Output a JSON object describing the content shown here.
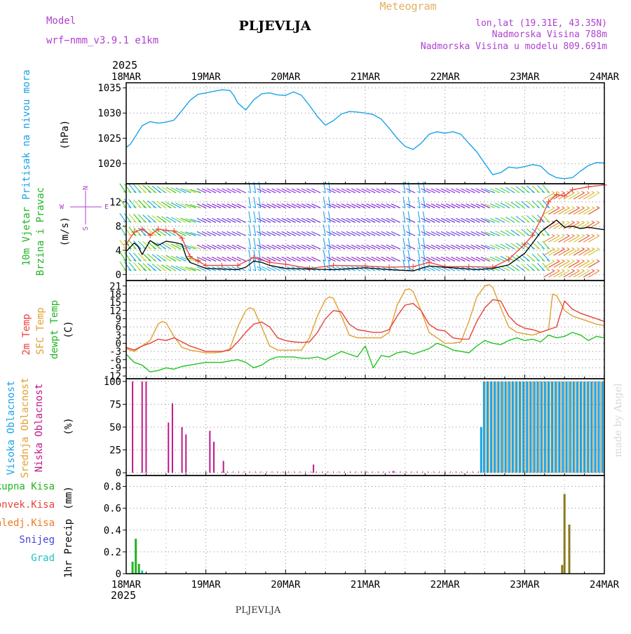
{
  "header": {
    "model_label": "Model",
    "model_name": "wrf−nmm_v3.9.1 e1km",
    "station": "PLJEVLJA",
    "title": "Meteogram",
    "coords": "lon,lat (19.31E, 43.35N)",
    "altitude": "Nadmorska Visina 788m",
    "model_altitude": "Nadmorska Visina u modelu 809.691m",
    "year_top": "2025",
    "year_bottom": "2025",
    "footer_station": "PLJEVLJA",
    "credit": "made by Angel"
  },
  "colors": {
    "pressure": "#1aa3e8",
    "temp2m": "#e8413a",
    "sfc": "#e0a030",
    "dewpt": "#22c422",
    "high_cloud": "#1aa3e8",
    "mid_cloud": "#e0a030",
    "low_cloud": "#c0178a",
    "total_rain": "#22b422",
    "conv_rain": "#e8413a",
    "frz_rain": "#f07820",
    "snow": "#4444dd",
    "hail": "#22c0c0",
    "title": "#e0b060",
    "info": "#b040d0"
  },
  "chart_data": [
    {
      "type": "line",
      "title": "",
      "ylabel": "Pritisak na nivou mora",
      "unit": "(hPa)",
      "x_ticks": [
        "18MAR",
        "19MAR",
        "20MAR",
        "21MAR",
        "22MAR",
        "23MAR",
        "24MAR"
      ],
      "ylim": [
        1016,
        1036
      ],
      "yticks": [
        1020,
        1025,
        1030,
        1035
      ],
      "grid": true,
      "series": [
        {
          "name": "",
          "x": [
            0,
            0.05,
            0.1,
            0.2,
            0.3,
            0.4,
            0.5,
            0.6,
            0.7,
            0.8,
            0.9,
            1.0,
            1.1,
            1.2,
            1.3,
            1.35,
            1.4,
            1.5,
            1.6,
            1.7,
            1.8,
            1.9,
            2.0,
            2.1,
            2.2,
            2.3,
            2.4,
            2.5,
            2.6,
            2.7,
            2.8,
            2.9,
            3.0,
            3.1,
            3.2,
            3.3,
            3.4,
            3.5,
            3.6,
            3.7,
            3.8,
            3.9,
            4.0,
            4.1,
            4.2,
            4.3,
            4.4,
            4.5,
            4.6,
            4.7,
            4.8,
            4.9,
            5.0,
            5.1,
            5.2,
            5.3,
            5.4,
            5.5,
            5.6,
            5.7,
            5.8,
            5.9,
            6.0
          ],
          "y": [
            1023.2,
            1023.8,
            1025.0,
            1027.5,
            1028.3,
            1028.0,
            1028.2,
            1028.6,
            1030.5,
            1032.5,
            1033.7,
            1034.0,
            1034.3,
            1034.6,
            1034.5,
            1033.5,
            1032.0,
            1030.6,
            1032.6,
            1033.8,
            1034.0,
            1033.6,
            1033.5,
            1034.2,
            1033.5,
            1031.5,
            1029.3,
            1027.6,
            1028.5,
            1029.8,
            1030.3,
            1030.2,
            1030.0,
            1029.7,
            1028.8,
            1027.0,
            1025.0,
            1023.4,
            1022.8,
            1024.0,
            1025.8,
            1026.3,
            1026.0,
            1026.3,
            1025.8,
            1024.0,
            1022.3,
            1020.0,
            1017.8,
            1018.2,
            1019.3,
            1019.1,
            1019.4,
            1019.8,
            1019.5,
            1018.0,
            1017.2,
            1017.0,
            1017.2,
            1018.5,
            1019.6,
            1020.2,
            1020.1
          ]
        }
      ]
    },
    {
      "type": "line",
      "title": "",
      "ylabel": "10m Vjetar Brzina i Pravac",
      "unit": "(m/s)",
      "x_ticks": [
        "18MAR",
        "19MAR",
        "20MAR",
        "21MAR",
        "22MAR",
        "23MAR",
        "24MAR"
      ],
      "ylim": [
        -1,
        15
      ],
      "yticks": [
        0,
        4,
        8,
        12
      ],
      "grid": true,
      "compass": {
        "n": "N",
        "w": "W",
        "e": "E",
        "s": "S"
      },
      "series": [
        {
          "name": "",
          "kind": "speed",
          "x": [
            0,
            0.1,
            0.15,
            0.2,
            0.3,
            0.4,
            0.5,
            0.6,
            0.7,
            0.75,
            0.8,
            0.9,
            1.0,
            1.2,
            1.4,
            1.5,
            1.6,
            1.7,
            1.8,
            2.0,
            2.3,
            2.6,
            3.0,
            3.3,
            3.6,
            3.8,
            4.0,
            4.2,
            4.4,
            4.6,
            4.8,
            5.0,
            5.1,
            5.2,
            5.4,
            5.5,
            5.6,
            5.7,
            5.8,
            6.0
          ],
          "y": [
            3.8,
            5.2,
            4.6,
            3.3,
            5.6,
            4.8,
            5.5,
            5.3,
            5.0,
            3.0,
            2.0,
            1.5,
            1.0,
            0.9,
            0.8,
            1.2,
            2.2,
            2.0,
            1.5,
            1.0,
            0.9,
            0.8,
            1.1,
            0.8,
            0.6,
            1.4,
            1.2,
            1.0,
            0.8,
            1.0,
            1.6,
            3.5,
            5.2,
            7.0,
            9.0,
            7.8,
            8.0,
            7.6,
            7.8,
            7.4
          ]
        },
        {
          "name": "",
          "kind": "gust",
          "x": [
            0,
            0.1,
            0.2,
            0.3,
            0.4,
            0.5,
            0.6,
            0.7,
            0.8,
            0.9,
            1.0,
            1.2,
            1.4,
            1.6,
            1.8,
            2.0,
            2.3,
            2.6,
            3.0,
            3.3,
            3.6,
            3.8,
            4.0,
            4.3,
            4.6,
            4.8,
            5.0,
            5.1,
            5.2,
            5.3,
            5.4,
            5.5,
            5.6,
            5.8,
            6.0
          ],
          "y": [
            5.0,
            7.0,
            7.5,
            6.5,
            7.5,
            7.3,
            7.2,
            6.0,
            3.0,
            2.2,
            1.5,
            1.5,
            1.5,
            2.8,
            2.0,
            1.7,
            1.0,
            1.5,
            1.4,
            1.2,
            1.3,
            2.0,
            1.3,
            1.3,
            1.2,
            2.5,
            5.0,
            6.5,
            9.0,
            12.0,
            13.2,
            13.0,
            14.0,
            14.5,
            14.8
          ]
        }
      ]
    },
    {
      "type": "line",
      "title": "",
      "ylabel": "2m Temp / SFC Temp / dewpt Temp",
      "unit": "(C)",
      "x_ticks": [
        "18MAR",
        "19MAR",
        "20MAR",
        "21MAR",
        "22MAR",
        "23MAR",
        "24MAR"
      ],
      "ylim": [
        -13,
        23
      ],
      "yticks": [
        -12,
        -9,
        -6,
        -3,
        0,
        3,
        6,
        9,
        12,
        15,
        18,
        21
      ],
      "grid": true,
      "series": [
        {
          "name": "2m Temp",
          "x": [
            0,
            0.1,
            0.2,
            0.3,
            0.4,
            0.5,
            0.6,
            0.7,
            0.8,
            0.9,
            1.0,
            1.1,
            1.2,
            1.3,
            1.4,
            1.5,
            1.6,
            1.7,
            1.8,
            1.9,
            2.0,
            2.1,
            2.2,
            2.3,
            2.4,
            2.5,
            2.6,
            2.7,
            2.8,
            2.9,
            3.0,
            3.1,
            3.2,
            3.3,
            3.4,
            3.5,
            3.6,
            3.7,
            3.8,
            3.9,
            4.0,
            4.1,
            4.2,
            4.3,
            4.4,
            4.5,
            4.6,
            4.7,
            4.8,
            4.9,
            5.0,
            5.1,
            5.2,
            5.3,
            5.4,
            5.5,
            5.6,
            5.7,
            5.8,
            5.9,
            6.0
          ],
          "y": [
            -1.5,
            -2.5,
            -1.0,
            0.0,
            1.5,
            1.0,
            2.0,
            0.5,
            -1.0,
            -2.0,
            -3.0,
            -3.0,
            -3.0,
            -2.5,
            0.5,
            4.0,
            7.0,
            7.8,
            6.0,
            2.0,
            1.0,
            0.5,
            0.3,
            0.5,
            4.0,
            9.0,
            12.0,
            11.5,
            7.0,
            5.0,
            4.5,
            4.0,
            4.0,
            5.0,
            10.0,
            14.0,
            14.6,
            12.0,
            7.0,
            5.0,
            4.5,
            2.0,
            1.5,
            1.5,
            8.0,
            13.0,
            16.0,
            15.5,
            10.0,
            7.0,
            5.5,
            5.0,
            4.0,
            5.0,
            6.0,
            15.5,
            12.5,
            11.0,
            10.0,
            9.0,
            8.0
          ]
        },
        {
          "name": "SFC Temp",
          "x": [
            0,
            0.1,
            0.2,
            0.3,
            0.4,
            0.45,
            0.5,
            0.55,
            0.6,
            0.7,
            0.8,
            0.9,
            1.0,
            1.1,
            1.2,
            1.3,
            1.4,
            1.5,
            1.55,
            1.6,
            1.7,
            1.8,
            1.9,
            2.0,
            2.1,
            2.2,
            2.3,
            2.4,
            2.5,
            2.55,
            2.6,
            2.7,
            2.8,
            2.9,
            3.0,
            3.1,
            3.2,
            3.3,
            3.4,
            3.5,
            3.55,
            3.6,
            3.7,
            3.8,
            3.9,
            4.0,
            4.1,
            4.2,
            4.3,
            4.4,
            4.5,
            4.55,
            4.6,
            4.7,
            4.8,
            4.9,
            5.0,
            5.1,
            5.2,
            5.3,
            5.35,
            5.4,
            5.5,
            5.6,
            5.7,
            5.8,
            5.9,
            6.0
          ],
          "y": [
            -2.0,
            -3.0,
            -1.0,
            1.0,
            7.0,
            8.0,
            7.5,
            5.0,
            2.5,
            -1.5,
            -2.5,
            -3.0,
            -3.5,
            -3.5,
            -3.2,
            -2.0,
            6.0,
            12.0,
            13.0,
            12.5,
            6.0,
            -1.0,
            -2.5,
            -2.5,
            -2.5,
            -2.5,
            2.0,
            10.0,
            16.0,
            17.0,
            16.5,
            10.0,
            3.0,
            2.0,
            2.0,
            2.0,
            2.0,
            4.0,
            14.0,
            19.5,
            20.0,
            19.0,
            12.0,
            4.0,
            2.0,
            0.0,
            0.0,
            0.5,
            8.0,
            17.0,
            21.0,
            21.5,
            20.5,
            13.0,
            6.0,
            4.0,
            3.5,
            3.0,
            4.0,
            5.0,
            18.0,
            17.5,
            12.0,
            10.0,
            9.0,
            8.0,
            7.0,
            6.5
          ]
        },
        {
          "name": "dewpt Temp",
          "x": [
            0,
            0.1,
            0.2,
            0.3,
            0.4,
            0.5,
            0.6,
            0.7,
            0.8,
            0.9,
            1.0,
            1.1,
            1.2,
            1.3,
            1.4,
            1.5,
            1.6,
            1.7,
            1.8,
            1.9,
            2.0,
            2.1,
            2.2,
            2.3,
            2.4,
            2.5,
            2.6,
            2.7,
            2.8,
            2.9,
            3.0,
            3.1,
            3.2,
            3.3,
            3.4,
            3.5,
            3.6,
            3.7,
            3.8,
            3.9,
            4.0,
            4.1,
            4.2,
            4.3,
            4.4,
            4.5,
            4.6,
            4.7,
            4.8,
            4.9,
            5.0,
            5.1,
            5.2,
            5.3,
            5.4,
            5.5,
            5.6,
            5.7,
            5.8,
            5.9,
            6.0
          ],
          "y": [
            -4.0,
            -7.0,
            -8.0,
            -10.5,
            -10.0,
            -9.0,
            -9.5,
            -8.5,
            -8.0,
            -7.5,
            -7.0,
            -7.0,
            -7.0,
            -6.5,
            -6.0,
            -7.0,
            -9.0,
            -8.0,
            -6.0,
            -5.0,
            -5.0,
            -5.0,
            -5.5,
            -5.5,
            -5.0,
            -6.0,
            -4.5,
            -3.0,
            -4.0,
            -5.0,
            -1.0,
            -9.0,
            -4.5,
            -5.0,
            -3.5,
            -3.0,
            -4.0,
            -3.0,
            -2.0,
            0.0,
            -1.0,
            -2.5,
            -3.0,
            -3.5,
            -1.0,
            1.0,
            0.0,
            -0.5,
            1.0,
            2.0,
            1.0,
            1.5,
            0.5,
            3.0,
            2.0,
            2.5,
            4.0,
            3.0,
            1.0,
            2.5,
            2.0
          ]
        }
      ]
    },
    {
      "type": "bar",
      "title": "",
      "ylabel": "Visoka Oblacnost / Srednja Oblacnost / Niska Oblacnost",
      "unit": "(%)",
      "x_ticks": [
        "18MAR",
        "19MAR",
        "20MAR",
        "21MAR",
        "22MAR",
        "23MAR",
        "24MAR"
      ],
      "ylim": [
        -3,
        103
      ],
      "yticks": [
        0,
        25,
        50,
        75,
        100
      ],
      "grid": true,
      "series": [
        {
          "name": "Niska Oblacnost",
          "x": [
            0.08,
            0.2,
            0.25,
            0.53,
            0.58,
            0.7,
            0.75,
            1.05,
            1.1,
            1.22,
            2.35,
            3.35,
            4.49
          ],
          "values": [
            100,
            100,
            100,
            55,
            76,
            50,
            42,
            46,
            34,
            13,
            9,
            2,
            9
          ]
        },
        {
          "name": "Visoka Oblacnost",
          "x_range": [
            4.45,
            6.0
          ],
          "first_value": 50,
          "values": [
            100
          ]
        }
      ]
    },
    {
      "type": "bar",
      "title": "",
      "ylabel": "1hr Precip",
      "unit": "(mm)",
      "x_ticks": [
        "18MAR",
        "19MAR",
        "20MAR",
        "21MAR",
        "22MAR",
        "23MAR",
        "24MAR"
      ],
      "ylim": [
        0,
        0.9
      ],
      "yticks": [
        0,
        0.2,
        0.4,
        0.6,
        0.8
      ],
      "grid": true,
      "legend": [
        "Ukupna Kisa",
        "Konvek.Kisa",
        "Zaledj.Kisa",
        "Snijeg",
        "Grad"
      ],
      "series": [
        {
          "name": "Ukupna Kisa",
          "x": [
            0.08,
            0.12,
            0.16
          ],
          "values": [
            0.11,
            0.32,
            0.09
          ]
        },
        {
          "name": "Zaledj.Kisa",
          "x": [
            5.47,
            5.5,
            5.56
          ],
          "values": [
            0.08,
            0.73,
            0.45
          ]
        },
        {
          "name": "Grad",
          "x": [
            0.2
          ],
          "values": [
            0.03
          ]
        }
      ]
    }
  ]
}
